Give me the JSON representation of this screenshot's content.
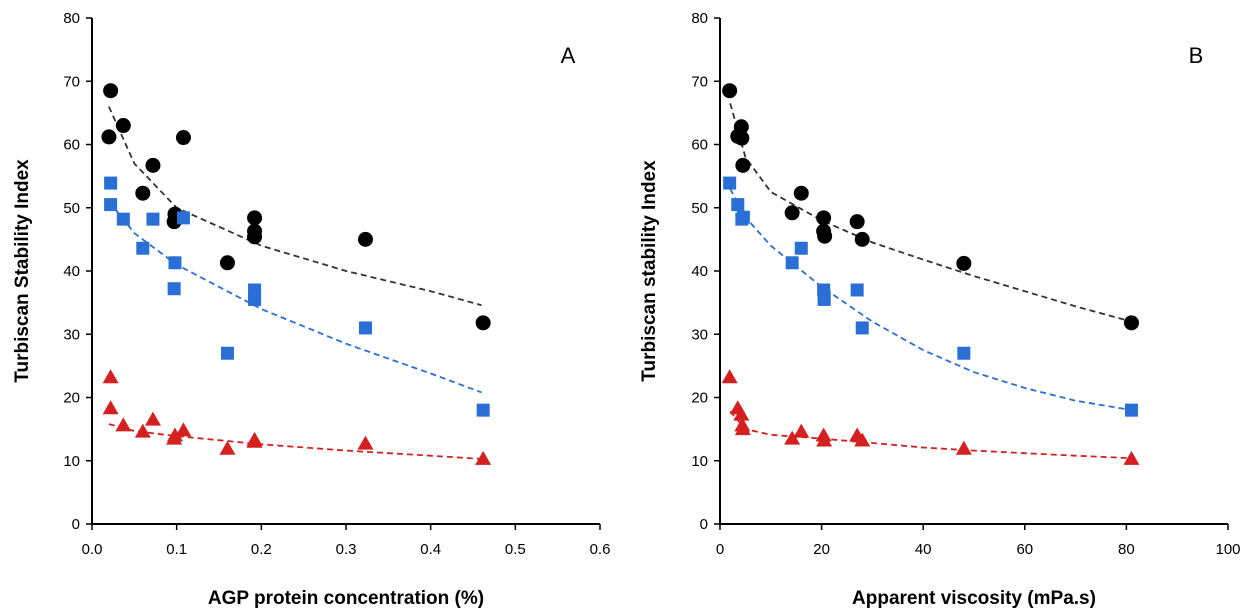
{
  "chart_data": [
    {
      "type": "scatter",
      "panel_label": "A",
      "xlabel": "AGP protein concentration (%)",
      "ylabel": "Turbiscan Stability Index",
      "xlim": [
        0,
        0.6
      ],
      "ylim": [
        0,
        80
      ],
      "xticks": [
        "0.0",
        "0.1",
        "0.2",
        "0.3",
        "0.4",
        "0.5",
        "0.6"
      ],
      "yticks": [
        "0",
        "10",
        "20",
        "30",
        "40",
        "50",
        "60",
        "70",
        "80"
      ],
      "grid": false,
      "series": [
        {
          "marker": "circle",
          "color": "#000000",
          "points": [
            [
              0.022,
              68.5
            ],
            [
              0.02,
              61.2
            ],
            [
              0.037,
              63
            ],
            [
              0.06,
              52.3
            ],
            [
              0.072,
              56.7
            ],
            [
              0.097,
              47.8
            ],
            [
              0.098,
              49
            ],
            [
              0.108,
              61.1
            ],
            [
              0.16,
              41.3
            ],
            [
              0.192,
              48.4
            ],
            [
              0.192,
              46.3
            ],
            [
              0.192,
              45.4
            ],
            [
              0.323,
              45
            ],
            [
              0.462,
              31.8
            ]
          ],
          "trend": [
            [
              0.02,
              66
            ],
            [
              0.05,
              57
            ],
            [
              0.1,
              50
            ],
            [
              0.2,
              44
            ],
            [
              0.3,
              40
            ],
            [
              0.4,
              36.8
            ],
            [
              0.46,
              34.6
            ]
          ]
        },
        {
          "marker": "square",
          "color": "#2a6fd6",
          "points": [
            [
              0.022,
              53.9
            ],
            [
              0.022,
              50.5
            ],
            [
              0.037,
              48.2
            ],
            [
              0.06,
              43.6
            ],
            [
              0.072,
              48.2
            ],
            [
              0.097,
              37.2
            ],
            [
              0.098,
              41.3
            ],
            [
              0.108,
              48.4
            ],
            [
              0.16,
              27
            ],
            [
              0.192,
              37
            ],
            [
              0.192,
              36
            ],
            [
              0.192,
              35.5
            ],
            [
              0.323,
              31
            ],
            [
              0.462,
              18
            ]
          ],
          "trend": [
            [
              0.02,
              51
            ],
            [
              0.05,
              46
            ],
            [
              0.1,
              41
            ],
            [
              0.2,
              34
            ],
            [
              0.3,
              28.5
            ],
            [
              0.4,
              23.8
            ],
            [
              0.46,
              20.8
            ]
          ]
        },
        {
          "marker": "triangle",
          "color": "#d42020",
          "points": [
            [
              0.022,
              23.2
            ],
            [
              0.022,
              18.3
            ],
            [
              0.037,
              15.6
            ],
            [
              0.06,
              14.6
            ],
            [
              0.072,
              16.5
            ],
            [
              0.097,
              13.5
            ],
            [
              0.098,
              14
            ],
            [
              0.108,
              14.8
            ],
            [
              0.16,
              11.9
            ],
            [
              0.192,
              13.3
            ],
            [
              0.192,
              13
            ],
            [
              0.323,
              12.7
            ],
            [
              0.462,
              10.3
            ]
          ],
          "trend": [
            [
              0.02,
              15.8
            ],
            [
              0.05,
              14.7
            ],
            [
              0.1,
              13.9
            ],
            [
              0.2,
              12.6
            ],
            [
              0.3,
              11.6
            ],
            [
              0.4,
              10.8
            ],
            [
              0.46,
              10.3
            ]
          ]
        }
      ]
    },
    {
      "type": "scatter",
      "panel_label": "B",
      "xlabel": "Apparent viscosity (mPa.s)",
      "ylabel": "Turbiscan stability Index",
      "xlim": [
        0,
        100
      ],
      "ylim": [
        0,
        80
      ],
      "xticks": [
        "0",
        "20",
        "40",
        "60",
        "80",
        "100"
      ],
      "yticks": [
        "0",
        "10",
        "20",
        "30",
        "40",
        "50",
        "60",
        "70",
        "80"
      ],
      "grid": false,
      "series": [
        {
          "marker": "circle",
          "color": "#000000",
          "points": [
            [
              1.9,
              68.5
            ],
            [
              3.5,
              61.3
            ],
            [
              4.2,
              62.8
            ],
            [
              4.3,
              61
            ],
            [
              4.5,
              56.7
            ],
            [
              14.2,
              49.2
            ],
            [
              16,
              52.3
            ],
            [
              20.4,
              48.4
            ],
            [
              20.4,
              46.3
            ],
            [
              20.6,
              45.5
            ],
            [
              27,
              47.8
            ],
            [
              28,
              45
            ],
            [
              48,
              41.2
            ],
            [
              81,
              31.8
            ]
          ],
          "trend": [
            [
              2,
              66.5
            ],
            [
              5,
              58
            ],
            [
              10,
              52.5
            ],
            [
              20,
              48
            ],
            [
              30,
              44.5
            ],
            [
              40,
              41.8
            ],
            [
              50,
              39.2
            ],
            [
              60,
              36.8
            ],
            [
              70,
              34.4
            ],
            [
              81,
              32
            ]
          ]
        },
        {
          "marker": "square",
          "color": "#2a6fd6",
          "points": [
            [
              1.9,
              53.9
            ],
            [
              3.5,
              50.5
            ],
            [
              4.3,
              48.2
            ],
            [
              4.6,
              48.5
            ],
            [
              14.2,
              41.3
            ],
            [
              16,
              43.6
            ],
            [
              20.4,
              37
            ],
            [
              20.5,
              36
            ],
            [
              20.5,
              35.5
            ],
            [
              27,
              37
            ],
            [
              28,
              31
            ],
            [
              48,
              27
            ],
            [
              81,
              18
            ]
          ],
          "trend": [
            [
              2,
              53
            ],
            [
              5,
              48.5
            ],
            [
              10,
              44
            ],
            [
              20,
              37.5
            ],
            [
              30,
              32
            ],
            [
              40,
              27.5
            ],
            [
              50,
              24
            ],
            [
              60,
              21.5
            ],
            [
              70,
              19.5
            ],
            [
              81,
              18
            ]
          ]
        },
        {
          "marker": "triangle",
          "color": "#d42020",
          "points": [
            [
              1.9,
              23.2
            ],
            [
              3.5,
              18.3
            ],
            [
              4.2,
              17.3
            ],
            [
              4.4,
              15.6
            ],
            [
              4.5,
              15
            ],
            [
              14.2,
              13.5
            ],
            [
              16,
              14.6
            ],
            [
              20.4,
              14
            ],
            [
              20.5,
              13.2
            ],
            [
              27,
              14
            ],
            [
              28,
              13.2
            ],
            [
              48,
              11.9
            ],
            [
              81,
              10.3
            ]
          ],
          "trend": [
            [
              2,
              17.8
            ],
            [
              5,
              15
            ],
            [
              10,
              14.1
            ],
            [
              20,
              13.5
            ],
            [
              30,
              12.8
            ],
            [
              40,
              12.1
            ],
            [
              50,
              11.6
            ],
            [
              60,
              11.2
            ],
            [
              70,
              10.8
            ],
            [
              81,
              10.4
            ]
          ]
        }
      ]
    }
  ]
}
